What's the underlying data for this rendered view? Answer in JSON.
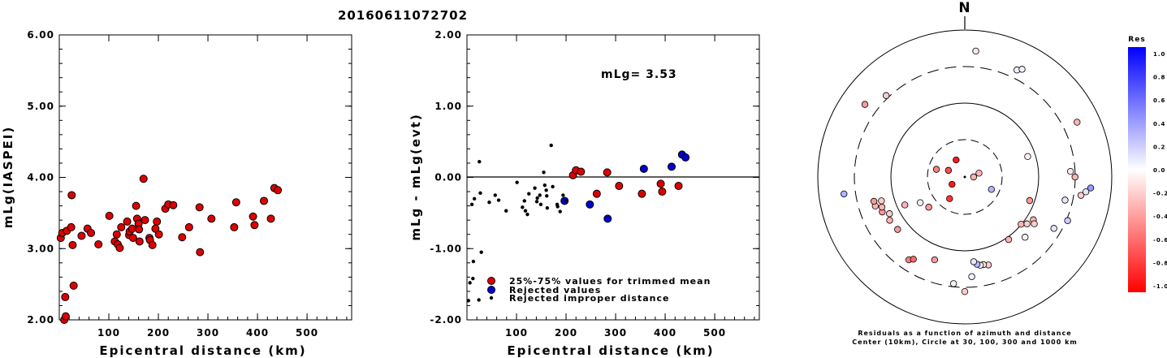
{
  "title": "20160611072702",
  "chart_data": [
    {
      "type": "scatter",
      "xlabel": "Epicentral distance (km)",
      "ylabel": "mLg(IASPEI)",
      "xlim": [
        0,
        590
      ],
      "ylim": [
        2.0,
        6.0
      ],
      "xticks": [
        "100",
        "200",
        "300",
        "400",
        "500"
      ],
      "yticks": [
        "2.00",
        "3.00",
        "4.00",
        "5.00",
        "6.00"
      ],
      "series": [
        {
          "color": "#dd0000",
          "points": [
            [
              3,
              3.15
            ],
            [
              6,
              3.22
            ],
            [
              10,
              2.0
            ],
            [
              12,
              2.32
            ],
            [
              13,
              2.05
            ],
            [
              15,
              3.25
            ],
            [
              24,
              3.3
            ],
            [
              25,
              3.75
            ],
            [
              27,
              3.05
            ],
            [
              29,
              2.48
            ],
            [
              45,
              3.18
            ],
            [
              57,
              3.28
            ],
            [
              64,
              3.22
            ],
            [
              79,
              3.06
            ],
            [
              101,
              3.46
            ],
            [
              112,
              3.1
            ],
            [
              116,
              3.2
            ],
            [
              118,
              3.06
            ],
            [
              122,
              3.01
            ],
            [
              125,
              3.3
            ],
            [
              137,
              3.38
            ],
            [
              141,
              3.19
            ],
            [
              142,
              3.24
            ],
            [
              147,
              3.28
            ],
            [
              149,
              3.15
            ],
            [
              155,
              3.6
            ],
            [
              157,
              3.42
            ],
            [
              160,
              3.35
            ],
            [
              161,
              3.27
            ],
            [
              162,
              3.1
            ],
            [
              170,
              3.98
            ],
            [
              173,
              3.4
            ],
            [
              182,
              3.15
            ],
            [
              183,
              3.12
            ],
            [
              188,
              3.05
            ],
            [
              194,
              3.28
            ],
            [
              197,
              3.38
            ],
            [
              201,
              3.2
            ],
            [
              214,
              3.56
            ],
            [
              220,
              3.62
            ],
            [
              230,
              3.61
            ],
            [
              248,
              3.16
            ],
            [
              262,
              3.3
            ],
            [
              283,
              3.58
            ],
            [
              284,
              2.95
            ],
            [
              307,
              3.42
            ],
            [
              353,
              3.3
            ],
            [
              357,
              3.65
            ],
            [
              391,
              3.45
            ],
            [
              394,
              3.33
            ],
            [
              413,
              3.67
            ],
            [
              427,
              3.42
            ],
            [
              434,
              3.85
            ],
            [
              441,
              3.82
            ]
          ]
        }
      ]
    },
    {
      "type": "scatter",
      "xlabel": "Epicentral distance (km)",
      "ylabel": "mLg - mLg(evt)",
      "xlim": [
        0,
        590
      ],
      "ylim": [
        -2.0,
        2.0
      ],
      "xticks": [
        "100",
        "200",
        "300",
        "400",
        "500"
      ],
      "yticks": [
        "-2.00",
        "-1.00",
        "0.00",
        "1.00",
        "2.00"
      ],
      "annotation": "mLg= 3.53",
      "legend": [
        "25%-75% values for trimmed mean",
        "Rejected values",
        "Rejected improper distance"
      ],
      "series": [
        {
          "name": "25%-75% values for trimmed mean",
          "color": "#dd0000",
          "points": [
            [
              214,
              0.03
            ],
            [
              220,
              0.1
            ],
            [
              230,
              0.08
            ],
            [
              262,
              -0.23
            ],
            [
              283,
              0.07
            ],
            [
              307,
              -0.12
            ],
            [
              353,
              -0.23
            ],
            [
              391,
              -0.09
            ],
            [
              394,
              -0.2
            ],
            [
              427,
              -0.12
            ]
          ]
        },
        {
          "name": "Rejected values",
          "color": "#0000cc",
          "points": [
            [
              197,
              -0.33
            ],
            [
              248,
              -0.38
            ],
            [
              284,
              -0.58
            ],
            [
              357,
              0.12
            ],
            [
              413,
              0.15
            ],
            [
              434,
              0.32
            ],
            [
              441,
              0.28
            ]
          ]
        },
        {
          "name": "Rejected improper distance",
          "color": "#000000",
          "points": [
            [
              3,
              -1.73
            ],
            [
              6,
              -1.48
            ],
            [
              10,
              -0.38
            ],
            [
              12,
              -1.42
            ],
            [
              13,
              -1.18
            ],
            [
              15,
              -0.3
            ],
            [
              24,
              -1.72
            ],
            [
              25,
              0.22
            ],
            [
              27,
              -0.22
            ],
            [
              29,
              -1.05
            ],
            [
              45,
              -0.35
            ],
            [
              57,
              -0.25
            ],
            [
              64,
              -0.32
            ],
            [
              79,
              -0.47
            ],
            [
              101,
              -0.07
            ],
            [
              112,
              -0.42
            ],
            [
              116,
              -0.33
            ],
            [
              118,
              -0.47
            ],
            [
              122,
              -0.52
            ],
            [
              125,
              -0.23
            ],
            [
              137,
              -0.15
            ],
            [
              141,
              -0.34
            ],
            [
              142,
              -0.29
            ],
            [
              147,
              -0.25
            ],
            [
              149,
              -0.38
            ],
            [
              155,
              0.07
            ],
            [
              157,
              -0.11
            ],
            [
              160,
              -0.18
            ],
            [
              161,
              -0.26
            ],
            [
              162,
              -0.43
            ],
            [
              170,
              0.45
            ],
            [
              173,
              -0.13
            ],
            [
              182,
              -0.38
            ],
            [
              183,
              -0.41
            ],
            [
              188,
              -0.48
            ],
            [
              194,
              -0.25
            ],
            [
              201,
              -0.33
            ]
          ]
        }
      ]
    },
    {
      "type": "scatter",
      "subtype": "polar residual map",
      "north_label": "N",
      "caption_line1": "Residuals as a function of azimuth and distance",
      "caption_line2": "Center (10km), Circle at 30, 100, 300 and 1000 km",
      "rings_km": [
        30,
        100,
        300,
        1000
      ],
      "colorbar": {
        "title": "Res",
        "ticks": [
          "1.0",
          "0.8",
          "0.6",
          "0.4",
          "0.2",
          "0.0",
          "-0.2",
          "-0.4",
          "-0.6",
          "-0.8",
          "-1.0"
        ],
        "max_color": "#0000ff",
        "mid_color": "#ffffff",
        "min_color": "#ff0000"
      },
      "points": [
        {
          "az": 5,
          "r": 0.86,
          "res": -0.1
        },
        {
          "az": 26,
          "r": 0.81,
          "res": 0.05
        },
        {
          "az": 28,
          "r": 0.83,
          "res": 0.05
        },
        {
          "az": 306,
          "r": 0.84,
          "res": -0.4
        },
        {
          "az": 316,
          "r": 0.77,
          "res": -0.2
        },
        {
          "az": 64,
          "r": 0.85,
          "res": -0.3
        },
        {
          "az": 72,
          "r": 0.45,
          "res": -0.05
        },
        {
          "az": 115,
          "r": 0.2,
          "res": 0.3
        },
        {
          "az": 215,
          "r": 0.18,
          "res": -0.8
        },
        {
          "az": 240,
          "r": 0.1,
          "res": -0.9
        },
        {
          "az": 292,
          "r": 0.12,
          "res": -0.7
        },
        {
          "az": 333,
          "r": 0.13,
          "res": -0.9
        },
        {
          "az": 285,
          "r": 0.2,
          "res": -0.5
        },
        {
          "az": 75,
          "r": 0.1,
          "res": -0.3
        },
        {
          "az": 90,
          "r": 0.06,
          "res": -0.3
        },
        {
          "az": 110,
          "r": 0.47,
          "res": -0.4
        },
        {
          "az": 103,
          "r": 0.7,
          "res": 0.1
        },
        {
          "az": 99,
          "r": 0.8,
          "res": -0.2
        },
        {
          "az": 97,
          "r": 0.83,
          "res": 0.1
        },
        {
          "az": 95,
          "r": 0.86,
          "res": 0.4
        },
        {
          "az": 90,
          "r": 0.75,
          "res": -0.3
        },
        {
          "az": 87,
          "r": 0.72,
          "res": -0.1
        },
        {
          "az": 122,
          "r": 0.55,
          "res": -0.3
        },
        {
          "az": 130,
          "r": 0.5,
          "res": -0.3
        },
        {
          "az": 127,
          "r": 0.53,
          "res": -0.2
        },
        {
          "az": 124,
          "r": 0.57,
          "res": -0.2
        },
        {
          "az": 120,
          "r": 0.7,
          "res": 0.1
        },
        {
          "az": 113,
          "r": 0.76,
          "res": 0.2
        },
        {
          "az": 135,
          "r": 0.58,
          "res": 0.05
        },
        {
          "az": 165,
          "r": 0.62,
          "res": -0.2
        },
        {
          "az": 168,
          "r": 0.61,
          "res": -0.1
        },
        {
          "az": 170,
          "r": 0.61,
          "res": 0.05
        },
        {
          "az": 172,
          "r": 0.6,
          "res": 0.3
        },
        {
          "az": 174,
          "r": 0.58,
          "res": 0.1
        },
        {
          "az": 176,
          "r": 0.68,
          "res": 0.05
        },
        {
          "az": 180,
          "r": 0.78,
          "res": -0.2
        },
        {
          "az": 186,
          "r": 0.73,
          "res": 0.05
        },
        {
          "az": 200,
          "r": 0.6,
          "res": -0.4
        },
        {
          "az": 214,
          "r": 0.68,
          "res": -0.5
        },
        {
          "az": 212,
          "r": 0.66,
          "res": -0.6
        },
        {
          "az": 232,
          "r": 0.58,
          "res": -0.4
        },
        {
          "az": 240,
          "r": 0.59,
          "res": -0.3
        },
        {
          "az": 244,
          "r": 0.57,
          "res": -0.2
        },
        {
          "az": 247,
          "r": 0.61,
          "res": -0.4
        },
        {
          "az": 250,
          "r": 0.6,
          "res": -0.3
        },
        {
          "az": 252,
          "r": 0.64,
          "res": -0.3
        },
        {
          "az": 254,
          "r": 0.59,
          "res": -0.2
        },
        {
          "az": 255,
          "r": 0.64,
          "res": -0.4
        },
        {
          "az": 245,
          "r": 0.45,
          "res": -0.3
        },
        {
          "az": 240,
          "r": 0.35,
          "res": 0.05
        },
        {
          "az": 230,
          "r": 0.32,
          "res": -0.4
        },
        {
          "az": 262,
          "r": 0.83,
          "res": 0.3
        },
        {
          "az": 145,
          "r": 0.52,
          "res": -0.3
        }
      ]
    }
  ]
}
